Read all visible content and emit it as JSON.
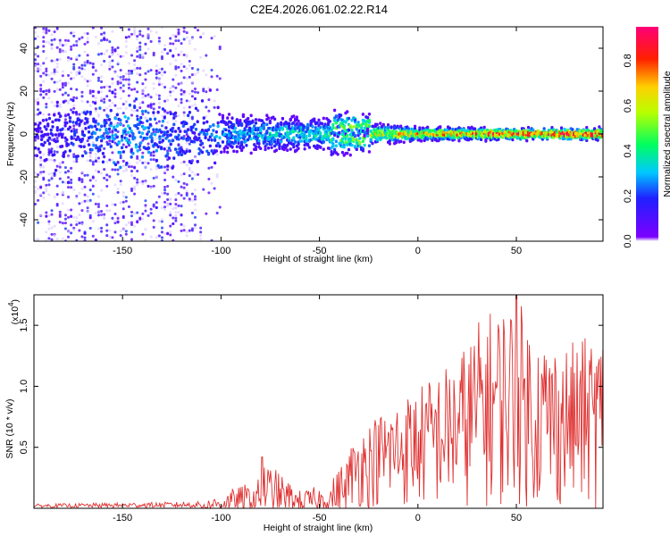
{
  "chart_data": [
    {
      "type": "heatmap",
      "title": "C2E4.2026.061.02.22.R14",
      "xlabel": "Height of straight line (km)",
      "ylabel": "Frequency (Hz)",
      "xlim": [
        -195,
        94
      ],
      "ylim": [
        -50,
        50
      ],
      "x_ticks": [
        -150,
        -100,
        -50,
        0,
        50
      ],
      "y_ticks": [
        -40,
        -20,
        0,
        20,
        40
      ],
      "grid": false,
      "colorbar": {
        "label": "Normalized spectral amplitude",
        "range": [
          0.0,
          0.95
        ],
        "ticks": [
          0.0,
          0.2,
          0.4,
          0.6,
          0.8
        ]
      },
      "ridge_profile": [
        {
          "x": -190,
          "amplitude": 0.15,
          "spread_hz": 45
        },
        {
          "x": -150,
          "amplitude": 0.3,
          "spread_hz": 45
        },
        {
          "x": -115,
          "amplitude": 0.2,
          "spread_hz": 45
        },
        {
          "x": -100,
          "amplitude": 0.3,
          "spread_hz": 10
        },
        {
          "x": -50,
          "amplitude": 0.4,
          "spread_hz": 8
        },
        {
          "x": -25,
          "amplitude": 0.6,
          "spread_hz": 5
        },
        {
          "x": 0,
          "amplitude": 0.75,
          "spread_hz": 3
        },
        {
          "x": 50,
          "amplitude": 0.85,
          "spread_hz": 2
        },
        {
          "x": 94,
          "amplitude": 0.95,
          "spread_hz": 2
        }
      ]
    },
    {
      "type": "line",
      "title": "",
      "xlabel": "Height of straight line (km)",
      "ylabel": "SNR (10 * v/v)",
      "y_multiplier": "(x10",
      "y_multiplier_exp": "4",
      "xlim": [
        -195,
        94
      ],
      "ylim": [
        0,
        1.75
      ],
      "x_ticks": [
        -150,
        -100,
        -50,
        0,
        50
      ],
      "y_ticks": [
        0.5,
        1.0,
        1.5
      ],
      "grid": false,
      "series": [
        {
          "name": "SNR",
          "color": "#e03030",
          "envelope": [
            {
              "x": -195,
              "max": 0.03
            },
            {
              "x": -110,
              "max": 0.05
            },
            {
              "x": -100,
              "max": 0.12
            },
            {
              "x": -80,
              "max": 0.25
            },
            {
              "x": -79,
              "max": 0.42
            },
            {
              "x": -60,
              "max": 0.15
            },
            {
              "x": -45,
              "max": 0.2
            },
            {
              "x": -35,
              "max": 0.5
            },
            {
              "x": -30,
              "max": 0.65
            },
            {
              "x": -15,
              "max": 0.85
            },
            {
              "x": 0,
              "max": 1.0
            },
            {
              "x": 20,
              "max": 1.25
            },
            {
              "x": 33,
              "max": 1.6
            },
            {
              "x": 50,
              "max": 1.75
            },
            {
              "x": 60,
              "max": 1.45
            },
            {
              "x": 75,
              "max": 1.35
            },
            {
              "x": 94,
              "max": 1.45
            }
          ]
        }
      ]
    }
  ]
}
